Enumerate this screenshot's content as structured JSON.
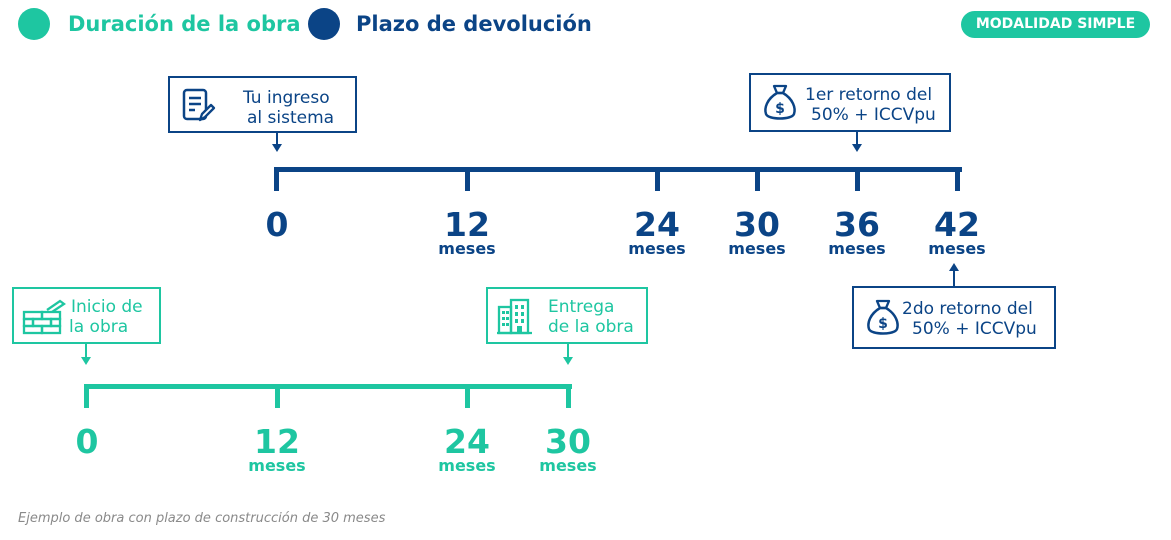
{
  "legend": {
    "items": [
      {
        "label": "Duración de la obra",
        "color": "#1ec6a1"
      },
      {
        "label": "Plazo de devolución",
        "color": "#0b4486"
      }
    ]
  },
  "badge": "MODALIDAD SIMPLE",
  "timeline_top": {
    "color": "#0b4486",
    "marks": [
      {
        "value": "0",
        "unit": ""
      },
      {
        "value": "12",
        "unit": "meses"
      },
      {
        "value": "24",
        "unit": "meses"
      },
      {
        "value": "30",
        "unit": "meses"
      },
      {
        "value": "36",
        "unit": "meses"
      },
      {
        "value": "42",
        "unit": "meses"
      }
    ],
    "callouts": [
      {
        "line1": "Tu ingreso",
        "line2": "al sistema",
        "icon": "document-edit-icon"
      },
      {
        "line1": "1er retorno del",
        "line2": "50% + ICCVpu",
        "icon": "money-bag-icon"
      },
      {
        "line1": "2do retorno del",
        "line2": "50% + ICCVpu",
        "icon": "money-bag-icon"
      }
    ]
  },
  "timeline_bottom": {
    "color": "#1ec6a1",
    "marks": [
      {
        "value": "0",
        "unit": ""
      },
      {
        "value": "12",
        "unit": "meses"
      },
      {
        "value": "24",
        "unit": "meses"
      },
      {
        "value": "30",
        "unit": "meses"
      }
    ],
    "callouts": [
      {
        "line1": "Inicio de",
        "line2": "la obra",
        "icon": "brick-wall-icon"
      },
      {
        "line1": "Entrega",
        "line2": "de la obra",
        "icon": "building-icon"
      }
    ]
  },
  "caption": "Ejemplo de obra con plazo de construcción de 30 meses"
}
